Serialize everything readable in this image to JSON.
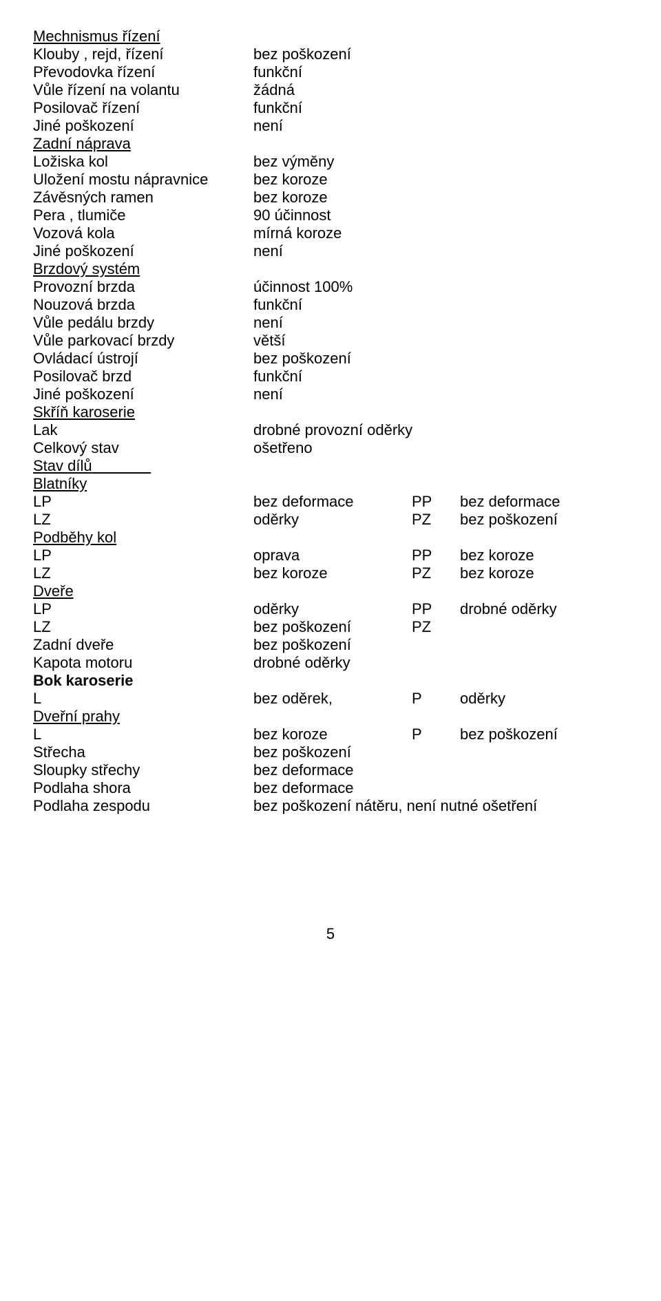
{
  "mech_rizeni": {
    "title": "Mechnismus řízení",
    "rows": [
      {
        "label": "Klouby , rejd, řízení",
        "value": "bez poškození"
      },
      {
        "label": "Převodovka řízení",
        "value": "funkční"
      },
      {
        "label": "Vůle řízení na volantu",
        "value": "žádná"
      },
      {
        "label": "Posilovač řízení",
        "value": "funkční"
      },
      {
        "label": "Jiné poškození",
        "value": "není"
      }
    ]
  },
  "zadni_naprava": {
    "title": "Zadní náprava",
    "rows": [
      {
        "label": "Ložiska kol",
        "value": "bez výměny"
      },
      {
        "label": "Uložení mostu nápravnice",
        "value": "bez koroze"
      },
      {
        "label": "Závěsných ramen",
        "value": "bez koroze"
      },
      {
        "label": "Pera , tlumiče",
        "value": "90 účinnost"
      },
      {
        "label": "Vozová kola",
        "value": "mírná koroze"
      },
      {
        "label": "Jiné poškození",
        "value": "není"
      }
    ]
  },
  "brzdy": {
    "title": "Brzdový systém",
    "rows": [
      {
        "label": "Provozní brzda",
        "value": "účinnost 100%"
      },
      {
        "label": "Nouzová brzda",
        "value": "funkční"
      },
      {
        "label": "Vůle pedálu brzdy",
        "value": "není"
      },
      {
        "label": "Vůle parkovací brzdy",
        "value": "větší"
      },
      {
        "label": "Ovládací ústrojí",
        "value": "bez poškození"
      },
      {
        "label": "Posilovač brzd",
        "value": "funkční"
      },
      {
        "label": "Jiné poškození",
        "value": "není"
      }
    ]
  },
  "skrin": {
    "title": "Skříň karoserie",
    "rows": [
      {
        "label": "Lak",
        "value": "drobné provozní oděrky"
      },
      {
        "label": "Celkový stav",
        "value": "ošetřeno"
      }
    ]
  },
  "stav_dilu": {
    "title": "Stav dílů"
  },
  "blatniky": {
    "title": "Blatníky",
    "rows": [
      {
        "c1": "LP",
        "c2": "bez deformace",
        "c3": "PP",
        "c4": "bez deformace"
      },
      {
        "c1": "LZ",
        "c2": "oděrky",
        "c3": "PZ",
        "c4": "bez poškození"
      }
    ]
  },
  "podbehy": {
    "title": "Podběhy kol",
    "rows": [
      {
        "c1": "LP",
        "c2": "oprava",
        "c3": "PP",
        "c4": "bez koroze"
      },
      {
        "c1": "LZ",
        "c2": "bez koroze",
        "c3": "PZ",
        "c4": "bez koroze"
      }
    ]
  },
  "dvere": {
    "title": "Dveře",
    "rows": [
      {
        "c1": "LP",
        "c2": "oděrky",
        "c3": "PP",
        "c4": "drobné oděrky"
      },
      {
        "c1": "LZ",
        "c2": "bez poškození",
        "c3": "PZ",
        "c4": ""
      },
      {
        "c1": "Zadní dveře",
        "c2": "bez poškození",
        "c3": "",
        "c4": ""
      },
      {
        "c1": "Kapota motoru",
        "c2": "drobné oděrky",
        "c3": "",
        "c4": ""
      }
    ]
  },
  "bok": {
    "title": "Bok karoserie",
    "rows": [
      {
        "c1": "L",
        "c2": "bez oděrek,",
        "c3": "P",
        "c4": "oděrky"
      }
    ]
  },
  "prahy": {
    "title": "Dveřní prahy",
    "rows": [
      {
        "c1": "L",
        "c2": "bez koroze",
        "c3": "P",
        "c4": "bez poškození"
      },
      {
        "c1": "Střecha",
        "c2": "bez poškození",
        "c3": "",
        "c4": ""
      },
      {
        "c1": "Sloupky střechy",
        "c2": "bez deformace",
        "c3": "",
        "c4": ""
      },
      {
        "c1": "Podlaha shora",
        "c2": "bez deformace",
        "c3": "",
        "c4": ""
      }
    ],
    "last": {
      "c1": "Podlaha zespodu",
      "c2": "bez poškození nátěru, není  nutné ošetření"
    }
  },
  "page": "5"
}
